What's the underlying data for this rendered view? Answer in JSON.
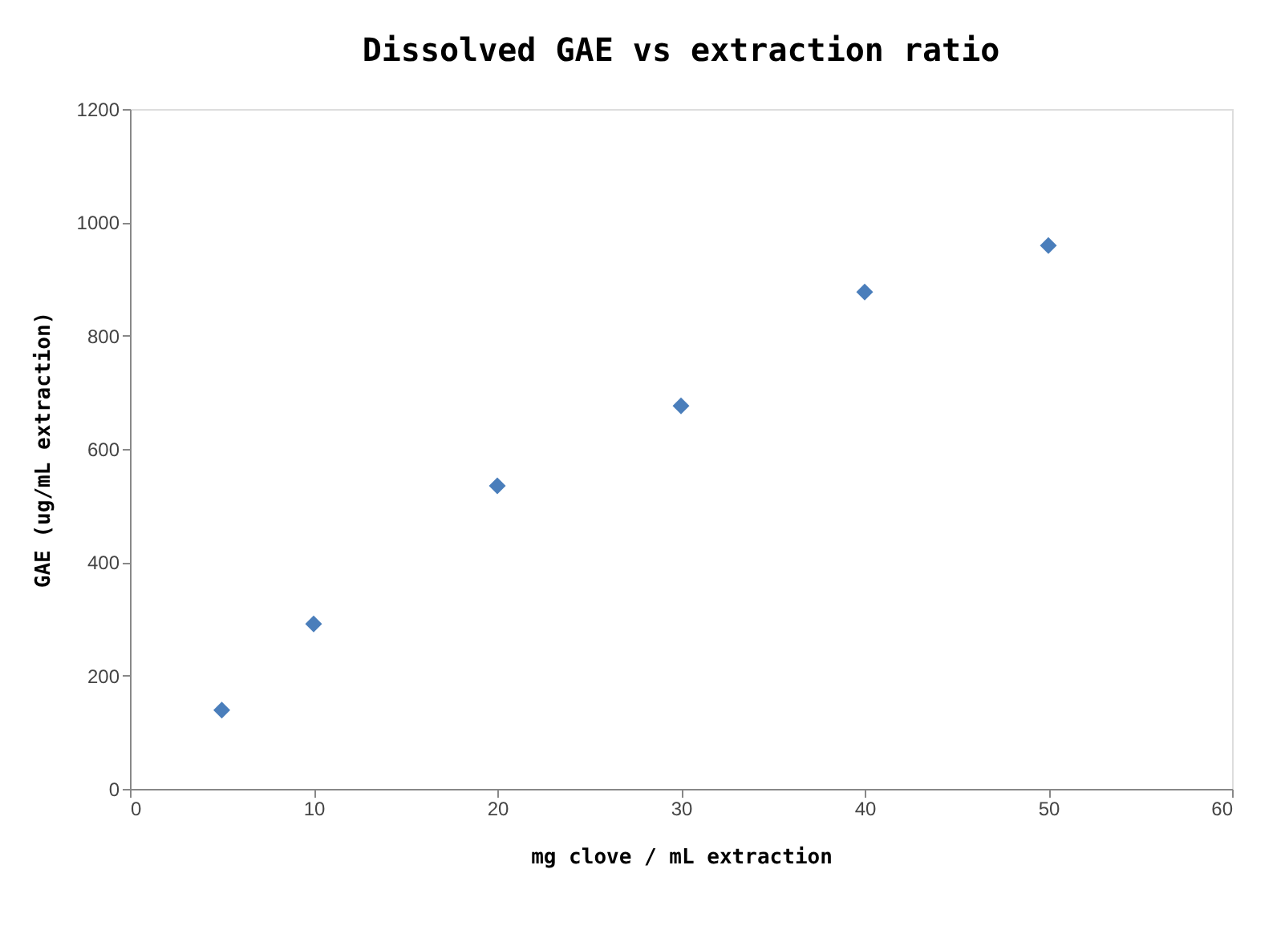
{
  "chart_data": {
    "type": "scatter",
    "title": "Dissolved GAE vs extraction ratio",
    "xlabel": "mg clove / mL extraction",
    "ylabel": "GAE (ug/mL extraction)",
    "x": [
      5,
      10,
      20,
      30,
      40,
      50
    ],
    "series": [
      {
        "color": "#4a7ebb",
        "values": [
          139,
          291,
          535,
          676,
          877,
          959
        ]
      }
    ],
    "xlim": [
      0,
      60
    ],
    "xticks": [
      0,
      10,
      20,
      30,
      40,
      50,
      60
    ],
    "ylim": [
      0,
      1200
    ],
    "yticks": [
      0,
      200,
      400,
      600,
      800,
      1000,
      1200
    ],
    "marker": "diamond",
    "grid": false,
    "legend": false
  }
}
